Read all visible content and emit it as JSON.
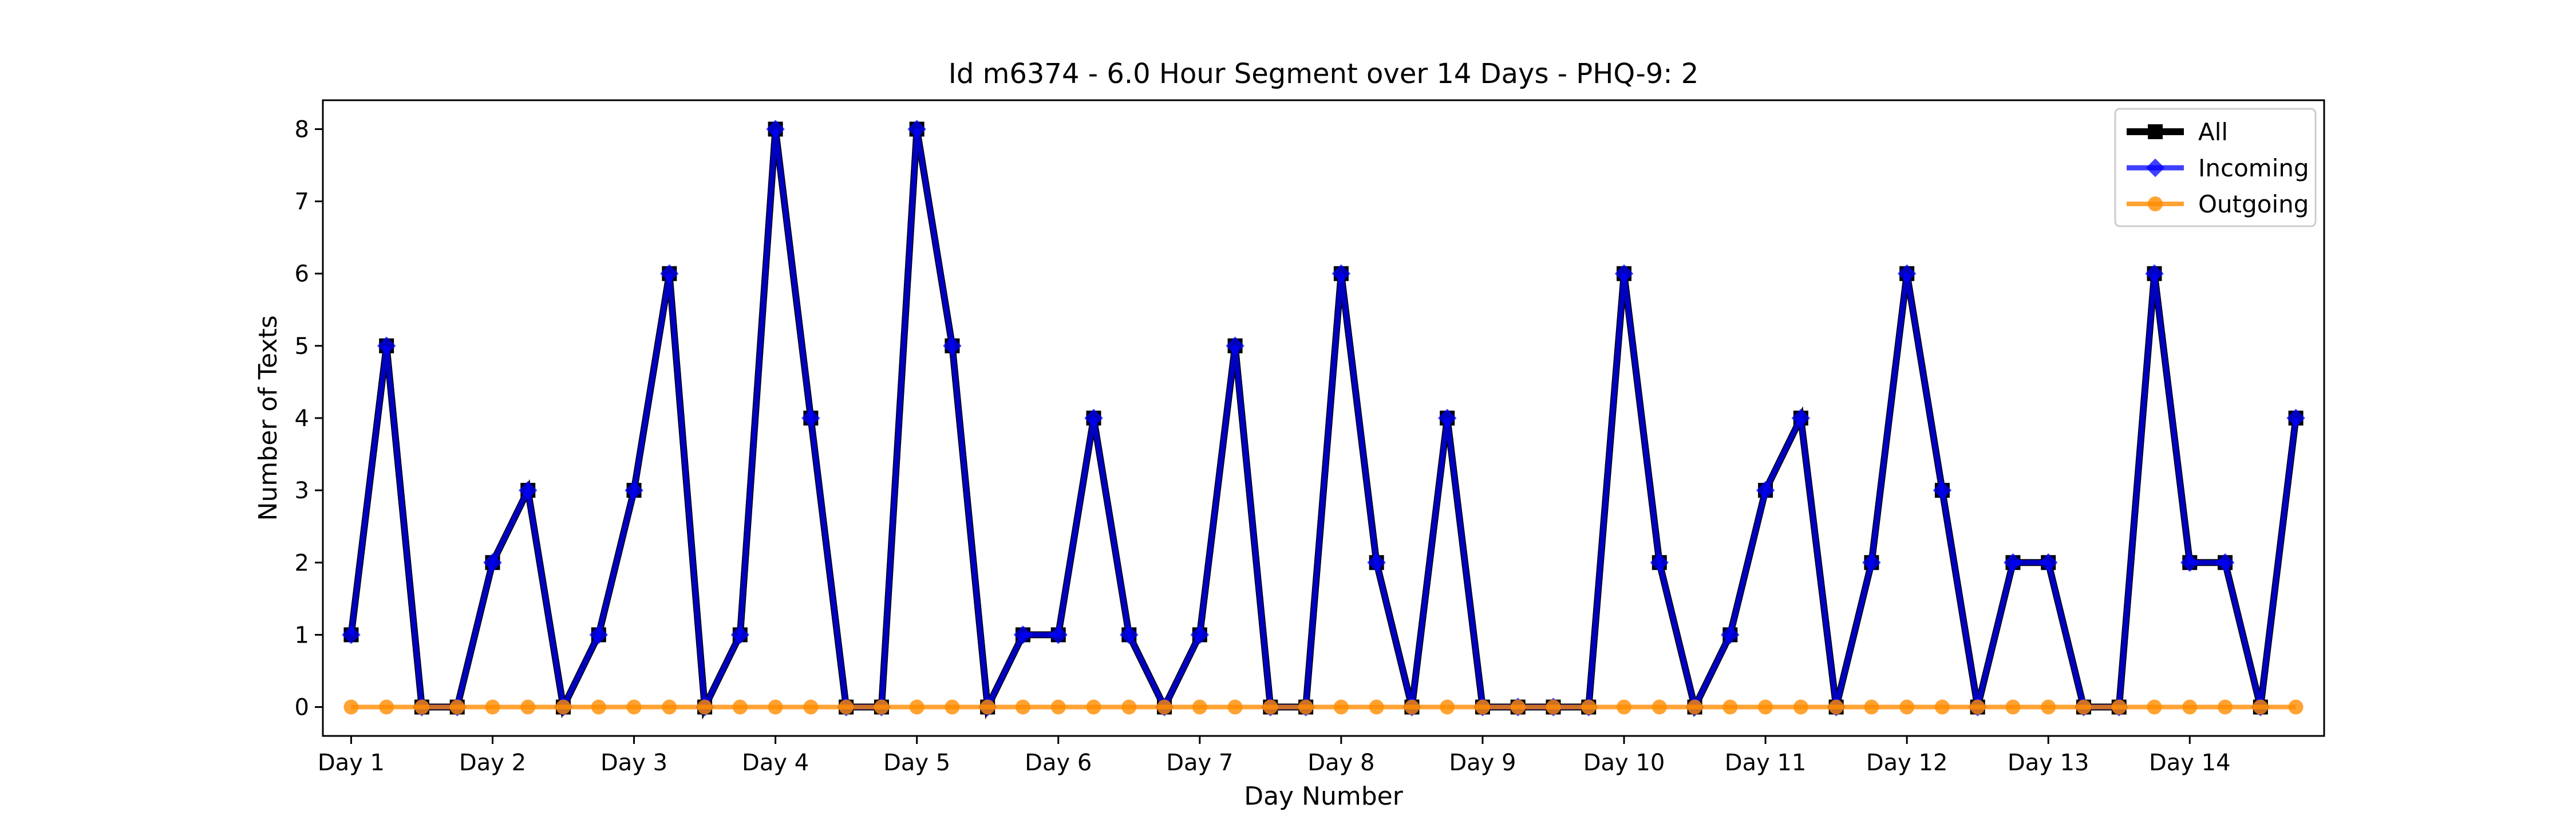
{
  "chart_data": {
    "type": "line",
    "title": "Id m6374 - 6.0 Hour Segment over 14 Days - PHQ-9: 2",
    "xlabel": "Day Number",
    "ylabel": "Number of Texts",
    "x_tick_labels": [
      "Day 1",
      "Day 2",
      "Day 3",
      "Day 4",
      "Day 5",
      "Day 6",
      "Day 7",
      "Day 8",
      "Day 9",
      "Day 10",
      "Day 11",
      "Day 12",
      "Day 13",
      "Day 14"
    ],
    "y_ticks": [
      0,
      1,
      2,
      3,
      4,
      5,
      6,
      7,
      8
    ],
    "ylim": [
      -0.4,
      8.4
    ],
    "grid": false,
    "legend_position": "top-right",
    "series": [
      {
        "name": "All",
        "color": "#000000",
        "marker": "square",
        "values": [
          1,
          5,
          0,
          0,
          2,
          3,
          0,
          1,
          3,
          6,
          0,
          1,
          8,
          4,
          0,
          0,
          8,
          5,
          0,
          1,
          1,
          4,
          1,
          0,
          1,
          5,
          0,
          0,
          6,
          2,
          0,
          4,
          0,
          0,
          0,
          0,
          6,
          2,
          0,
          1,
          3,
          4,
          0,
          2,
          6,
          3,
          0,
          2,
          2,
          0,
          0,
          6,
          2,
          2,
          0,
          4
        ]
      },
      {
        "name": "Incoming",
        "color": "#0000ff",
        "marker": "diamond",
        "values": [
          1,
          5,
          0,
          0,
          2,
          3,
          0,
          1,
          3,
          6,
          0,
          1,
          8,
          4,
          0,
          0,
          8,
          5,
          0,
          1,
          1,
          4,
          1,
          0,
          1,
          5,
          0,
          0,
          6,
          2,
          0,
          4,
          0,
          0,
          0,
          0,
          6,
          2,
          0,
          1,
          3,
          4,
          0,
          2,
          6,
          3,
          0,
          2,
          2,
          0,
          0,
          6,
          2,
          2,
          0,
          4
        ]
      },
      {
        "name": "Outgoing",
        "color": "#ff8c00",
        "marker": "circle",
        "values": [
          0,
          0,
          0,
          0,
          0,
          0,
          0,
          0,
          0,
          0,
          0,
          0,
          0,
          0,
          0,
          0,
          0,
          0,
          0,
          0,
          0,
          0,
          0,
          0,
          0,
          0,
          0,
          0,
          0,
          0,
          0,
          0,
          0,
          0,
          0,
          0,
          0,
          0,
          0,
          0,
          0,
          0,
          0,
          0,
          0,
          0,
          0,
          0,
          0,
          0,
          0,
          0,
          0,
          0,
          0,
          0
        ]
      }
    ]
  }
}
